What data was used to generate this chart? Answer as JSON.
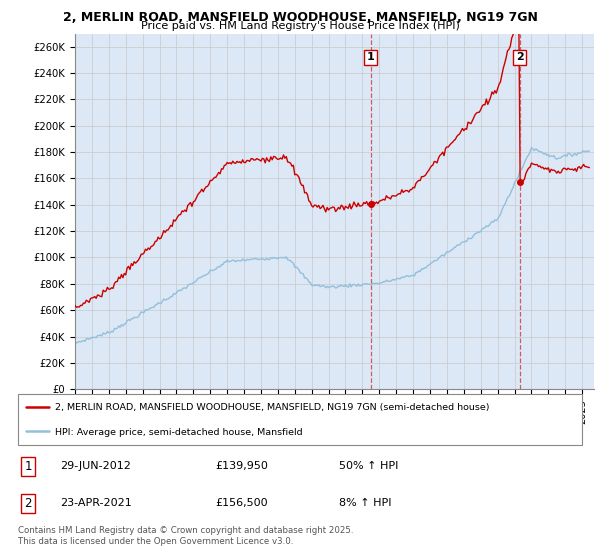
{
  "title1": "2, MERLIN ROAD, MANSFIELD WOODHOUSE, MANSFIELD, NG19 7GN",
  "title2": "Price paid vs. HM Land Registry's House Price Index (HPI)",
  "legend_line1": "2, MERLIN ROAD, MANSFIELD WOODHOUSE, MANSFIELD, NG19 7GN (semi-detached house)",
  "legend_line2": "HPI: Average price, semi-detached house, Mansfield",
  "sale1_date": "29-JUN-2012",
  "sale1_price": "£139,950",
  "sale1_hpi": "50% ↑ HPI",
  "sale2_date": "23-APR-2021",
  "sale2_price": "£156,500",
  "sale2_hpi": "8% ↑ HPI",
  "footer": "Contains HM Land Registry data © Crown copyright and database right 2025.\nThis data is licensed under the Open Government Licence v3.0.",
  "sale1_year": 2012.49,
  "sale2_year": 2021.31,
  "sale1_value": 139950,
  "sale2_value": 156500,
  "ylim_max": 270000,
  "ylim_min": 0,
  "hpi_color": "#92c0dc",
  "price_color": "#cc0000",
  "vline_color": "#cc0000",
  "grid_color": "#c8c8c8",
  "background_color": "#dce8f5"
}
